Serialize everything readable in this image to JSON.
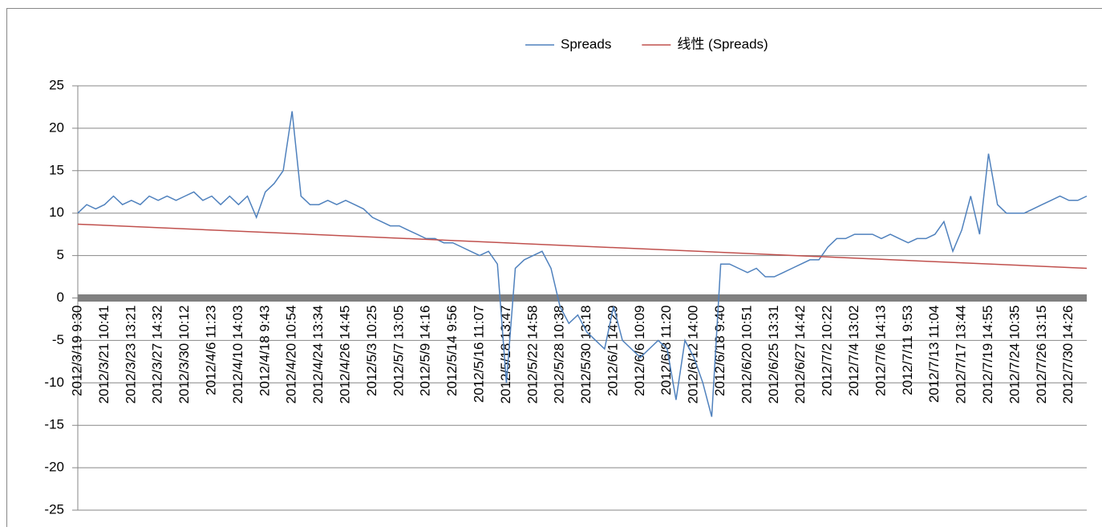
{
  "chart_data": {
    "type": "line",
    "categories": [
      "2012/3/19 9:30",
      null,
      null,
      "2012/3/21 10:41",
      null,
      null,
      "2012/3/23 13:21",
      null,
      null,
      "2012/3/27 14:32",
      null,
      null,
      "2012/3/30 10:12",
      null,
      null,
      "2012/4/6 11:23",
      null,
      null,
      "2012/4/10 14:03",
      null,
      null,
      "2012/4/18 9:43",
      null,
      null,
      "2012/4/20 10:54",
      null,
      null,
      "2012/4/24 13:34",
      null,
      null,
      "2012/4/26 14:45",
      null,
      null,
      "2012/5/3 10:25",
      null,
      null,
      "2012/5/7 13:05",
      null,
      null,
      "2012/5/9 14:16",
      null,
      null,
      "2012/5/14 9:56",
      null,
      null,
      "2012/5/16 11:07",
      null,
      null,
      "2012/5/18 13:47",
      null,
      null,
      "2012/5/22 14:58",
      null,
      null,
      "2012/5/28 10:38",
      null,
      null,
      "2012/5/30 13:18",
      null,
      null,
      "2012/6/1 14:29",
      null,
      null,
      "2012/6/6 10:09",
      null,
      null,
      "2012/6/8 11:20",
      null,
      null,
      "2012/6/12 14:00",
      null,
      null,
      "2012/6/18 9:40",
      null,
      null,
      "2012/6/20 10:51",
      null,
      null,
      "2012/6/25 13:31",
      null,
      null,
      "2012/6/27 14:42",
      null,
      null,
      "2012/7/2 10:22",
      null,
      null,
      "2012/7/4 13:02",
      null,
      null,
      "2012/7/6 14:13",
      null,
      null,
      "2012/7/11 9:53",
      null,
      null,
      "2012/7/13 11:04",
      null,
      null,
      "2012/7/17 13:44",
      null,
      null,
      "2012/7/19 14:55",
      null,
      null,
      "2012/7/24 10:35",
      null,
      null,
      "2012/7/26 13:15",
      null,
      null,
      "2012/7/30 14:26",
      null,
      null
    ],
    "series": [
      {
        "name": "Spreads",
        "color": "#4f81bd",
        "values": [
          10,
          11,
          10.5,
          11,
          12,
          11,
          11.5,
          11,
          12,
          11.5,
          12,
          11.5,
          12,
          12.5,
          11.5,
          12,
          11,
          12,
          11,
          12,
          9.5,
          12.5,
          13.5,
          15,
          22,
          12,
          11,
          11,
          11.5,
          11,
          11.5,
          11,
          10.5,
          9.5,
          9,
          8.5,
          8.5,
          8,
          7.5,
          7,
          7,
          6.5,
          6.5,
          6,
          5.5,
          5,
          5.5,
          4,
          -10,
          3.5,
          4.5,
          5,
          5.5,
          3.5,
          -1,
          -3,
          -2,
          -4,
          -5,
          -6,
          -1,
          -5,
          -6,
          -7,
          -6,
          -5,
          -6,
          -12,
          -5,
          -7,
          -10,
          -14,
          4,
          4,
          3.5,
          3,
          3.5,
          2.5,
          2.5,
          3,
          3.5,
          4,
          4.5,
          4.5,
          6,
          7,
          7,
          7.5,
          7.5,
          7.5,
          7,
          7.5,
          7,
          6.5,
          7,
          7,
          7.5,
          9,
          5.5,
          8,
          12,
          7.5,
          17,
          11,
          10,
          10,
          10,
          10.5,
          11,
          11.5,
          12,
          11.5,
          11.5,
          12
        ]
      }
    ],
    "trendline": {
      "name": "线性 (Spreads)",
      "color": "#c0504d",
      "values": [
        8.7,
        3.5
      ]
    },
    "ylim": [
      -25,
      25
    ],
    "yticks": [
      -25,
      -20,
      -15,
      -10,
      -5,
      0,
      5,
      10,
      15,
      20,
      25
    ],
    "grid": true,
    "legend": "top"
  }
}
